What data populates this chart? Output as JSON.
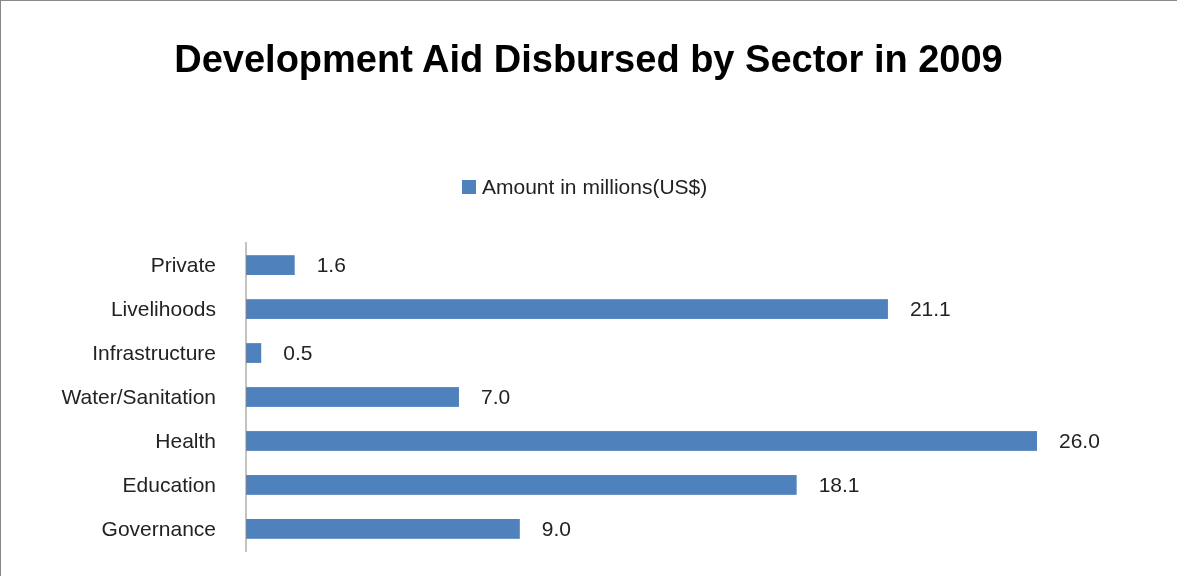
{
  "chart_data": {
    "type": "bar",
    "orientation": "horizontal",
    "title": "Development Aid Disbursed by Sector in 2009",
    "categories": [
      "Private",
      "Livelihoods",
      "Infrastructure",
      "Water/Sanitation",
      "Health",
      "Education",
      "Governance"
    ],
    "series": [
      {
        "name": "Amount in millions(US$)",
        "color": "#4f81bd",
        "values": [
          1.6,
          21.1,
          0.5,
          7.0,
          26.0,
          18.1,
          9.0
        ],
        "value_labels": [
          "1.6",
          "21.1",
          "0.5",
          "7.0",
          "26.0",
          "18.1",
          "9.0"
        ]
      }
    ],
    "legend": "top"
  }
}
